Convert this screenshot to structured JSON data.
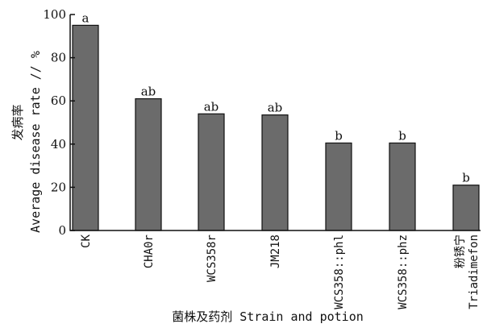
{
  "chart_data": {
    "type": "bar",
    "categories": [
      {
        "line1": "CK",
        "line2": ""
      },
      {
        "line1": "CHA0r",
        "line2": ""
      },
      {
        "line1": "WCS358r",
        "line2": ""
      },
      {
        "line1": "JM218",
        "line2": ""
      },
      {
        "line1": "WCS358::phl",
        "line2": ""
      },
      {
        "line1": "WCS358::phz",
        "line2": ""
      },
      {
        "line1": "粉锈宁",
        "line2": "Triadimefon"
      }
    ],
    "values": [
      95,
      61,
      54,
      53.5,
      40.5,
      40.5,
      21
    ],
    "significance": [
      "a",
      "ab",
      "ab",
      "ab",
      "b",
      "b",
      "b"
    ],
    "ylim": [
      0,
      100
    ],
    "yticks": [
      0,
      20,
      40,
      60,
      80,
      100
    ],
    "ylabel_cn": "发病率",
    "ylabel_en": "Average disease rate // %",
    "xlabel": "菌株及药剂 Strain and potion",
    "grid": false,
    "colors": {
      "bar": "#6b6b6b"
    }
  }
}
